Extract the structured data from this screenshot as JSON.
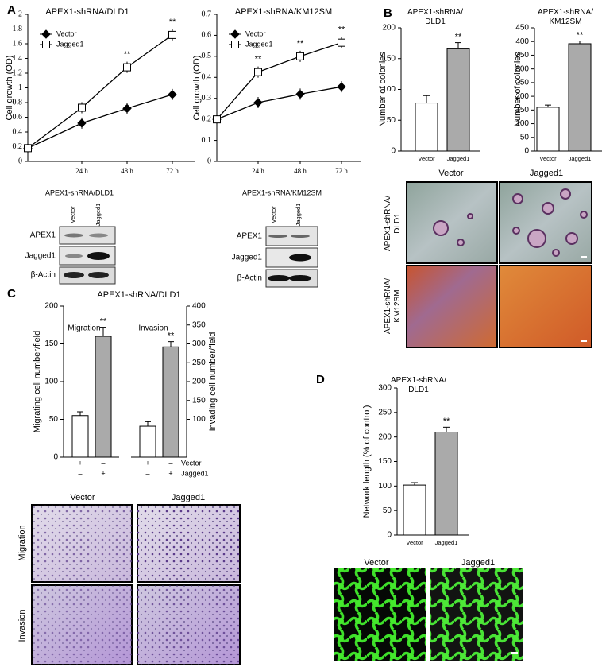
{
  "chart_data": [
    {
      "type": "line",
      "title": "APEX1-shRNA/DLD1",
      "ylabel": "Cell growth (OD)",
      "categories": [
        null,
        "24 h",
        "48 h",
        "72 h"
      ],
      "ylim": [
        0,
        2
      ],
      "yticks": [
        0,
        0.2,
        0.4,
        0.6,
        0.8,
        1,
        1.2,
        1.4,
        1.6,
        1.8,
        2
      ],
      "series": [
        {
          "name": "Vector",
          "color": "#000000",
          "marker": "diamond",
          "filled": true,
          "values": [
            0.18,
            0.52,
            0.72,
            0.91
          ],
          "significance": [
            null,
            null,
            null,
            null
          ]
        },
        {
          "name": "Jagged1",
          "color": "#000000",
          "marker": "square",
          "filled": false,
          "values": [
            0.18,
            0.73,
            1.28,
            1.72
          ],
          "significance": [
            null,
            null,
            "**",
            "**"
          ]
        }
      ]
    },
    {
      "type": "line",
      "title": "APEX1-shRNA/KM12SM",
      "ylabel": "Cell growth (OD)",
      "categories": [
        null,
        "24 h",
        "48 h",
        "72 h"
      ],
      "ylim": [
        0,
        0.7
      ],
      "yticks": [
        0,
        0.1,
        0.2,
        0.3,
        0.4,
        0.5,
        0.6,
        0.7
      ],
      "series": [
        {
          "name": "Vector",
          "color": "#000000",
          "marker": "diamond",
          "filled": true,
          "values": [
            0.2,
            0.28,
            0.32,
            0.355
          ],
          "significance": [
            null,
            null,
            null,
            null
          ]
        },
        {
          "name": "Jagged1",
          "color": "#000000",
          "marker": "square",
          "filled": false,
          "values": [
            0.2,
            0.425,
            0.5,
            0.565
          ],
          "significance": [
            null,
            "**",
            "**",
            "**"
          ]
        }
      ]
    },
    {
      "type": "bar",
      "title": "APEX1-shRNA/\nDLD1",
      "ylabel": "Number of colonies",
      "categories": [
        "Vector",
        "Jagged1"
      ],
      "values": [
        78,
        166
      ],
      "errors": [
        12,
        10
      ],
      "significance": [
        null,
        "**"
      ],
      "colors": [
        "#ffffff",
        "#aaaaaa"
      ],
      "ylim": [
        0,
        200
      ],
      "yticks": [
        0,
        50,
        100,
        150,
        200
      ]
    },
    {
      "type": "bar",
      "title": "APEX1-shRNA/\nKM12SM",
      "ylabel": "Number of colonies",
      "categories": [
        "Vector",
        "Jagged1"
      ],
      "values": [
        160,
        392
      ],
      "errors": [
        8,
        10
      ],
      "significance": [
        null,
        "**"
      ],
      "colors": [
        "#ffffff",
        "#aaaaaa"
      ],
      "ylim": [
        0,
        450
      ],
      "yticks": [
        0,
        50,
        100,
        150,
        200,
        250,
        300,
        350,
        400,
        450
      ]
    },
    {
      "type": "bar",
      "title": "APEX1-shRNA/DLD1",
      "ylabel": "Migrating cell number/field",
      "y2label": "Invading cell number/field",
      "colors": [
        "#ffffff",
        "#aaaaaa"
      ],
      "ylim": [
        0,
        200
      ],
      "yticks": [
        0,
        50,
        100,
        150,
        200
      ],
      "y2lim": [
        0,
        400
      ],
      "y2ticks": [
        100,
        150,
        200,
        250,
        300,
        350,
        400
      ],
      "panels": [
        {
          "label": "Migration",
          "values": [
            55,
            160
          ],
          "errors": [
            5,
            12
          ],
          "significance": [
            null,
            "**"
          ]
        },
        {
          "label": "Invasion",
          "axis": "y2",
          "values": [
            82,
            292
          ],
          "errors": [
            12,
            14
          ],
          "significance": [
            null,
            "**"
          ]
        }
      ],
      "conditions": [
        {
          "name": "Vector",
          "signs": [
            "+",
            "–",
            "+",
            "–"
          ]
        },
        {
          "name": "Jagged1",
          "signs": [
            "–",
            "+",
            "–",
            "+"
          ]
        }
      ]
    },
    {
      "type": "bar",
      "title": "APEX1-shRNA/\nDLD1",
      "ylabel": "Network length (% of control)",
      "categories": [
        "Vector",
        "Jagged1"
      ],
      "values": [
        102,
        210
      ],
      "errors": [
        5,
        10
      ],
      "significance": [
        null,
        "**"
      ],
      "colors": [
        "#ffffff",
        "#aaaaaa"
      ],
      "ylim": [
        0,
        300
      ],
      "yticks": [
        0,
        50,
        100,
        150,
        200,
        250,
        300
      ]
    }
  ],
  "figure": {
    "panels": [
      "A",
      "B",
      "C",
      "D"
    ],
    "blots": [
      {
        "title": "APEX1-shRNA/DLD1",
        "lanes": [
          "Vector",
          "Jagged1"
        ],
        "rows": [
          "APEX1",
          "Jagged1",
          "β-Actin"
        ]
      },
      {
        "title": "APEX1-shRNA/KM12SM",
        "lanes": [
          "Vector",
          "Jagged1"
        ],
        "rows": [
          "APEX1",
          "Jagged1",
          "β-Actin"
        ]
      }
    ],
    "micrographs": [
      {
        "columns": [
          "Vector",
          "Jagged1"
        ],
        "rows": [
          "APEX1-shRNA/\nDLD1",
          "APEX1-shRNA/\nKM12SM"
        ]
      },
      {
        "columns": [
          "Vector",
          "Jagged1"
        ],
        "rows": [
          "Migration",
          "Invasion"
        ]
      },
      {
        "columns": [
          "Vector",
          "Jagged1"
        ]
      }
    ]
  }
}
